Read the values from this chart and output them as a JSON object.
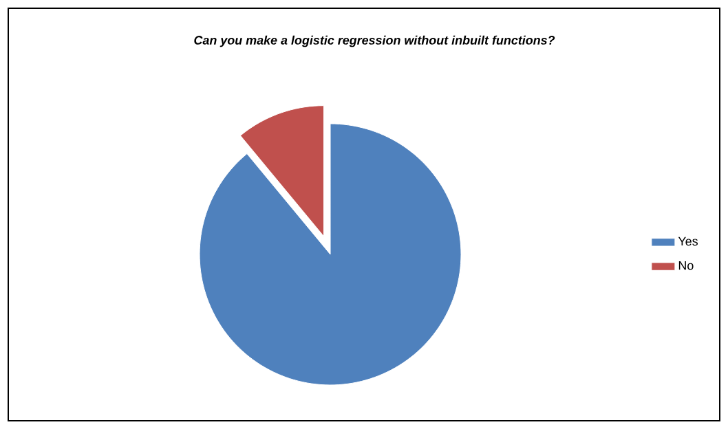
{
  "chart_data": {
    "type": "pie",
    "title": "Can you make a logistic regression without inbuilt functions?",
    "categories": [
      "Yes",
      "No"
    ],
    "values": [
      89,
      11
    ],
    "colors": [
      "#4f81bd",
      "#c0504d"
    ],
    "legend": "right"
  }
}
